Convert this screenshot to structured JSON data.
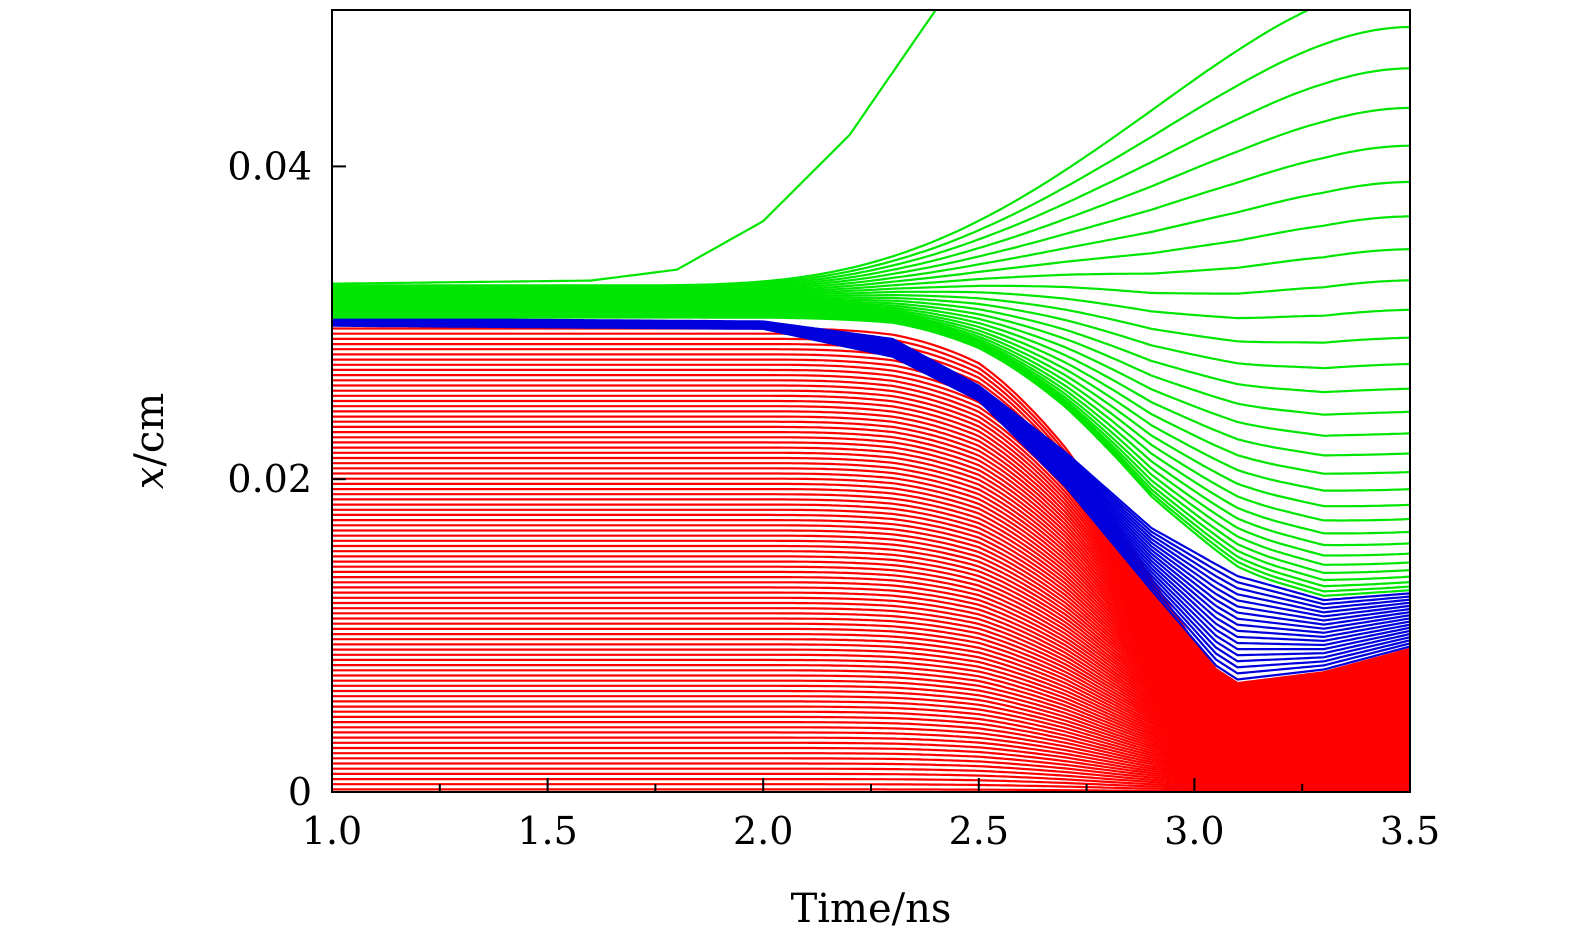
{
  "chart_data": {
    "type": "line",
    "xlabel": "Time/ns",
    "ylabel_var": "x",
    "ylabel_unit": "/cm",
    "xlim": [
      1.0,
      3.5
    ],
    "ylim": [
      0,
      0.05
    ],
    "xticks": [
      1.0,
      1.5,
      2.0,
      2.5,
      3.0,
      3.5
    ],
    "xtick_labels": [
      "1.0",
      "1.5",
      "2.0",
      "2.5",
      "3.0",
      "3.5"
    ],
    "yticks": [
      0,
      0.02,
      0.04
    ],
    "ytick_labels": [
      "0",
      "0.02",
      "0.04"
    ],
    "colors": {
      "red": "#ff0000",
      "blue": "#0000dd",
      "green": "#00e600"
    },
    "series": [
      {
        "color": "red",
        "line_count": 90,
        "pattern": "flat then decaying to 0; lines stack densely below the blue boundary",
        "init_y_range": [
          0,
          0.0298
        ],
        "boundary_path": {
          "x": [
            1.0,
            2.0,
            2.3,
            2.5,
            2.7,
            2.9,
            3.05,
            3.1,
            3.3,
            3.5
          ],
          "y": [
            0.0298,
            0.0296,
            0.0278,
            0.025,
            0.0195,
            0.0128,
            0.0079,
            0.007,
            0.0077,
            0.0092
          ]
        }
      },
      {
        "color": "blue",
        "line_count": 18,
        "pattern": "shell lines between red boundary and green region",
        "init_y_range": [
          0.0298,
          0.0303
        ],
        "end_y_range": [
          0.0092,
          0.0128
        ],
        "boundary_path": {
          "x": [
            1.0,
            2.0,
            2.3,
            2.5,
            2.7,
            2.9,
            3.1,
            3.3,
            3.5
          ],
          "y": [
            0.0303,
            0.0301,
            0.029,
            0.026,
            0.0218,
            0.017,
            0.014,
            0.0124,
            0.0128
          ]
        }
      },
      {
        "color": "green",
        "line_count": 30,
        "pattern": "blow-off lines: outer lines rise, inner lines converge down toward blue shell",
        "init_y_range": [
          0.0303,
          0.0325
        ],
        "end_y_range": [
          0.0145,
          0.056
        ],
        "outermost_path": {
          "x": [
            1.0,
            1.6,
            1.8,
            2.0,
            2.2,
            2.4
          ],
          "y": [
            0.0325,
            0.0327,
            0.0334,
            0.0365,
            0.042,
            0.05
          ]
        }
      }
    ]
  }
}
